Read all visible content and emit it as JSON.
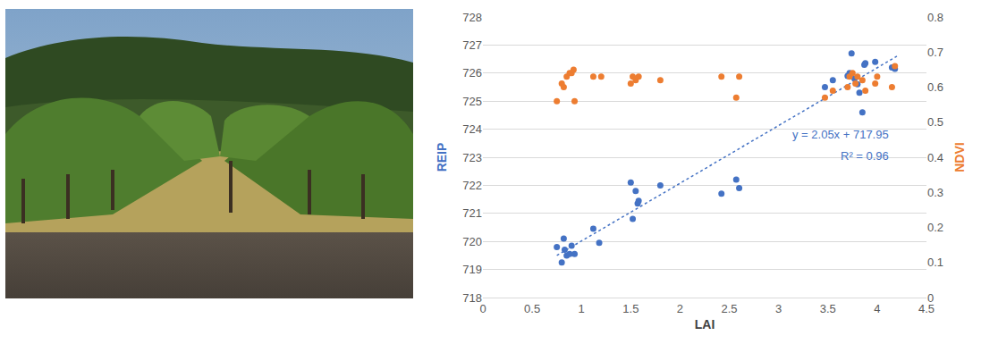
{
  "chart_data": {
    "type": "scatter",
    "x_label": "LAI",
    "y_label": "REIP",
    "y2_label": "NDVI",
    "xlim": [
      0,
      4.5
    ],
    "xticks": [
      0,
      0.5,
      1,
      1.5,
      2,
      2.5,
      3,
      3.5,
      4,
      4.5
    ],
    "ylim": [
      718,
      728
    ],
    "yticks": [
      718,
      719,
      720,
      721,
      722,
      723,
      724,
      725,
      726,
      727,
      728
    ],
    "y2lim": [
      0,
      0.8
    ],
    "y2ticks": [
      0,
      0.1,
      0.2,
      0.3,
      0.4,
      0.5,
      0.6,
      0.7,
      0.8
    ],
    "grid": true,
    "annotations": [
      "y = 2.05x + 717.95",
      "R² = 0.96"
    ],
    "series": [
      {
        "name": "REIP",
        "color": "#4472c4",
        "marker": "circle",
        "x": [
          0.75,
          0.8,
          0.82,
          0.83,
          0.85,
          0.88,
          0.9,
          0.93,
          1.12,
          1.18,
          1.5,
          1.52,
          1.55,
          1.57,
          1.58,
          1.8,
          2.42,
          2.57,
          2.6,
          3.47,
          3.55,
          3.7,
          3.72,
          3.74,
          3.77,
          3.8,
          3.82,
          3.85,
          3.87,
          3.88,
          3.98,
          4.15,
          4.18
        ],
        "values": [
          719.8,
          719.25,
          720.1,
          719.7,
          719.5,
          719.55,
          719.85,
          719.55,
          720.45,
          719.95,
          722.1,
          720.8,
          721.8,
          721.35,
          721.45,
          722.0,
          721.7,
          722.2,
          721.9,
          725.5,
          725.75,
          725.9,
          726.0,
          726.7,
          725.8,
          725.6,
          725.3,
          724.6,
          726.3,
          726.35,
          726.4,
          726.2,
          726.15
        ]
      },
      {
        "name": "NDVI",
        "color": "#ed7d31",
        "marker": "circle",
        "axis": "y2",
        "x": [
          0.75,
          0.8,
          0.82,
          0.85,
          0.88,
          0.9,
          0.92,
          0.93,
          1.12,
          1.2,
          1.5,
          1.52,
          1.55,
          1.58,
          1.8,
          2.42,
          2.57,
          2.6,
          3.47,
          3.55,
          3.7,
          3.72,
          3.75,
          3.78,
          3.8,
          3.85,
          3.88,
          3.98,
          4.0,
          4.15,
          4.18
        ],
        "values": [
          0.56,
          0.61,
          0.6,
          0.63,
          0.64,
          0.64,
          0.65,
          0.56,
          0.63,
          0.63,
          0.61,
          0.63,
          0.62,
          0.63,
          0.62,
          0.63,
          0.57,
          0.63,
          0.57,
          0.59,
          0.6,
          0.63,
          0.64,
          0.61,
          0.63,
          0.62,
          0.59,
          0.61,
          0.63,
          0.6,
          0.66
        ]
      },
      {
        "type": "line",
        "color": "#4472c4",
        "line_style": "dotted",
        "x": [
          0.75,
          4.2
        ],
        "values": [
          719.5,
          726.6
        ]
      }
    ]
  }
}
